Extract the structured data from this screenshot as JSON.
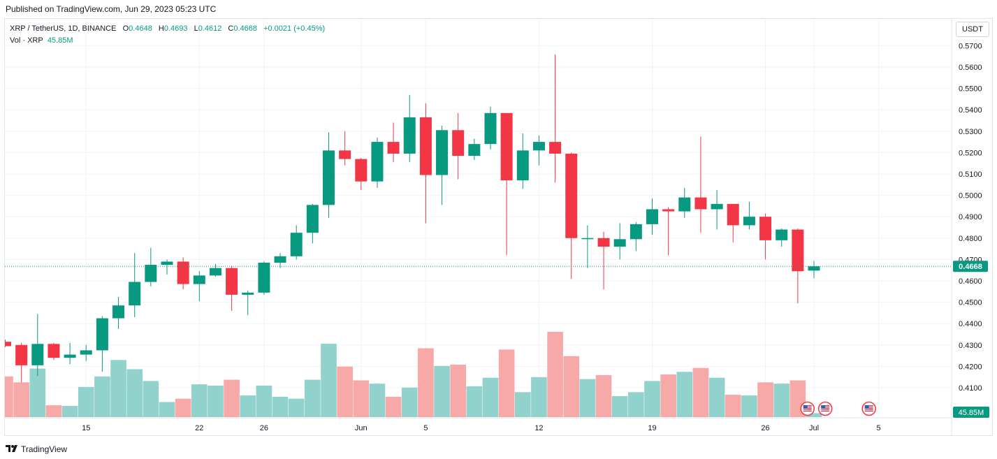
{
  "published": "Published on TradingView.com, Jun 29, 2023 05:23 UTC",
  "legend": {
    "symbol": "XRP / TetherUS, 1D, BINANCE",
    "open_label": "O",
    "open": "0.4648",
    "high_label": "H",
    "high": "0.4693",
    "low_label": "L",
    "low": "0.4612",
    "close_label": "C",
    "close": "0.4668",
    "change": "+0.0021 (+0.45%)",
    "vol_label": "Vol · XRP",
    "vol_value": "45.85M"
  },
  "currency": "USDT",
  "footer": {
    "brand": "TradingView",
    "logo_icon": "tradingview-logo-icon"
  },
  "colors": {
    "up": "#089981",
    "down": "#f23645",
    "vol_up": "#92d2cc",
    "vol_down": "#f7a9a7"
  },
  "chart_data": {
    "type": "candlestick",
    "y_ticks": [
      "0.4100",
      "0.4200",
      "0.4300",
      "0.4400",
      "0.4500",
      "0.4600",
      "0.4700",
      "0.4800",
      "0.4900",
      "0.5000",
      "0.5100",
      "0.5200",
      "0.5300",
      "0.5400",
      "0.5500",
      "0.5600",
      "0.5700"
    ],
    "ylim": [
      0.4,
      0.575
    ],
    "last_price_label": "0.4668",
    "last_price": 0.4668,
    "volume_label": "45.85M",
    "x_ticks": [
      {
        "label": "15",
        "idx": 5
      },
      {
        "label": "22",
        "idx": 12
      },
      {
        "label": "26",
        "idx": 16
      },
      {
        "label": "Jun",
        "idx": 22
      },
      {
        "label": "5",
        "idx": 26
      },
      {
        "label": "12",
        "idx": 33
      },
      {
        "label": "19",
        "idx": 40
      },
      {
        "label": "26",
        "idx": 47
      },
      {
        "label": "Jul",
        "idx": 50
      },
      {
        "label": "5",
        "idx": 54
      }
    ],
    "event_markers": [
      {
        "idx": 49.6,
        "icon": "us-flag-icon"
      },
      {
        "idx": 50.7,
        "icon": "us-flag-icon"
      },
      {
        "idx": 53.4,
        "icon": "us-flag-icon"
      }
    ],
    "candles": [
      {
        "o": 0.4315,
        "h": 0.4325,
        "l": 0.429,
        "c": 0.4295,
        "v": 0.62
      },
      {
        "o": 0.43,
        "h": 0.431,
        "l": 0.4125,
        "c": 0.4205,
        "v": 0.53
      },
      {
        "o": 0.4205,
        "h": 0.4445,
        "l": 0.4155,
        "c": 0.4305,
        "v": 0.74
      },
      {
        "o": 0.4305,
        "h": 0.431,
        "l": 0.423,
        "c": 0.424,
        "v": 0.18
      },
      {
        "o": 0.424,
        "h": 0.431,
        "l": 0.421,
        "c": 0.4255,
        "v": 0.17
      },
      {
        "o": 0.4255,
        "h": 0.43,
        "l": 0.4225,
        "c": 0.4275,
        "v": 0.46
      },
      {
        "o": 0.4275,
        "h": 0.4435,
        "l": 0.4175,
        "c": 0.4425,
        "v": 0.62
      },
      {
        "o": 0.4425,
        "h": 0.4525,
        "l": 0.4375,
        "c": 0.4485,
        "v": 0.87
      },
      {
        "o": 0.4485,
        "h": 0.473,
        "l": 0.443,
        "c": 0.4595,
        "v": 0.73
      },
      {
        "o": 0.4595,
        "h": 0.4755,
        "l": 0.4575,
        "c": 0.4675,
        "v": 0.55
      },
      {
        "o": 0.4675,
        "h": 0.47,
        "l": 0.463,
        "c": 0.469,
        "v": 0.23
      },
      {
        "o": 0.469,
        "h": 0.471,
        "l": 0.456,
        "c": 0.4585,
        "v": 0.28
      },
      {
        "o": 0.4585,
        "h": 0.4645,
        "l": 0.4505,
        "c": 0.4625,
        "v": 0.5
      },
      {
        "o": 0.4625,
        "h": 0.468,
        "l": 0.462,
        "c": 0.466,
        "v": 0.48
      },
      {
        "o": 0.466,
        "h": 0.467,
        "l": 0.446,
        "c": 0.4535,
        "v": 0.57
      },
      {
        "o": 0.4535,
        "h": 0.4555,
        "l": 0.444,
        "c": 0.4545,
        "v": 0.33
      },
      {
        "o": 0.4545,
        "h": 0.469,
        "l": 0.4535,
        "c": 0.4685,
        "v": 0.48
      },
      {
        "o": 0.4685,
        "h": 0.473,
        "l": 0.466,
        "c": 0.4715,
        "v": 0.31
      },
      {
        "o": 0.4715,
        "h": 0.486,
        "l": 0.47,
        "c": 0.4825,
        "v": 0.28
      },
      {
        "o": 0.4825,
        "h": 0.496,
        "l": 0.4775,
        "c": 0.4955,
        "v": 0.57
      },
      {
        "o": 0.4955,
        "h": 0.5295,
        "l": 0.4895,
        "c": 0.521,
        "v": 1.12
      },
      {
        "o": 0.521,
        "h": 0.53,
        "l": 0.514,
        "c": 0.517,
        "v": 0.77
      },
      {
        "o": 0.517,
        "h": 0.5175,
        "l": 0.5025,
        "c": 0.5065,
        "v": 0.56
      },
      {
        "o": 0.5065,
        "h": 0.527,
        "l": 0.5035,
        "c": 0.525,
        "v": 0.51
      },
      {
        "o": 0.525,
        "h": 0.534,
        "l": 0.5155,
        "c": 0.5195,
        "v": 0.31
      },
      {
        "o": 0.5195,
        "h": 0.547,
        "l": 0.5155,
        "c": 0.5365,
        "v": 0.45
      },
      {
        "o": 0.5365,
        "h": 0.543,
        "l": 0.487,
        "c": 0.5095,
        "v": 1.05
      },
      {
        "o": 0.5095,
        "h": 0.5325,
        "l": 0.4955,
        "c": 0.5305,
        "v": 0.78
      },
      {
        "o": 0.5305,
        "h": 0.5385,
        "l": 0.5075,
        "c": 0.5185,
        "v": 0.8
      },
      {
        "o": 0.5185,
        "h": 0.5265,
        "l": 0.5165,
        "c": 0.524,
        "v": 0.47
      },
      {
        "o": 0.524,
        "h": 0.5415,
        "l": 0.5215,
        "c": 0.5385,
        "v": 0.6
      },
      {
        "o": 0.5385,
        "h": 0.5385,
        "l": 0.472,
        "c": 0.507,
        "v": 1.03
      },
      {
        "o": 0.507,
        "h": 0.529,
        "l": 0.503,
        "c": 0.521,
        "v": 0.38
      },
      {
        "o": 0.521,
        "h": 0.528,
        "l": 0.514,
        "c": 0.525,
        "v": 0.61
      },
      {
        "o": 0.525,
        "h": 0.566,
        "l": 0.506,
        "c": 0.5195,
        "v": 1.3
      },
      {
        "o": 0.5195,
        "h": 0.52,
        "l": 0.461,
        "c": 0.48,
        "v": 0.93
      },
      {
        "o": 0.48,
        "h": 0.486,
        "l": 0.466,
        "c": 0.48,
        "v": 0.58
      },
      {
        "o": 0.48,
        "h": 0.483,
        "l": 0.456,
        "c": 0.476,
        "v": 0.64
      },
      {
        "o": 0.476,
        "h": 0.487,
        "l": 0.47,
        "c": 0.4795,
        "v": 0.32
      },
      {
        "o": 0.4795,
        "h": 0.4875,
        "l": 0.474,
        "c": 0.4865,
        "v": 0.38
      },
      {
        "o": 0.4865,
        "h": 0.4985,
        "l": 0.4815,
        "c": 0.4935,
        "v": 0.55
      },
      {
        "o": 0.4935,
        "h": 0.4945,
        "l": 0.472,
        "c": 0.4925,
        "v": 0.65
      },
      {
        "o": 0.4925,
        "h": 0.5035,
        "l": 0.4895,
        "c": 0.499,
        "v": 0.69
      },
      {
        "o": 0.499,
        "h": 0.5275,
        "l": 0.4825,
        "c": 0.4935,
        "v": 0.75
      },
      {
        "o": 0.4935,
        "h": 0.5025,
        "l": 0.484,
        "c": 0.496,
        "v": 0.6
      },
      {
        "o": 0.496,
        "h": 0.496,
        "l": 0.478,
        "c": 0.486,
        "v": 0.34
      },
      {
        "o": 0.486,
        "h": 0.497,
        "l": 0.484,
        "c": 0.49,
        "v": 0.33
      },
      {
        "o": 0.49,
        "h": 0.4915,
        "l": 0.47,
        "c": 0.479,
        "v": 0.53
      },
      {
        "o": 0.479,
        "h": 0.4845,
        "l": 0.476,
        "c": 0.484,
        "v": 0.51
      },
      {
        "o": 0.484,
        "h": 0.4845,
        "l": 0.4495,
        "c": 0.4645,
        "v": 0.56
      },
      {
        "o": 0.4648,
        "h": 0.4693,
        "l": 0.4612,
        "c": 0.4668,
        "v": 0.06
      }
    ]
  }
}
